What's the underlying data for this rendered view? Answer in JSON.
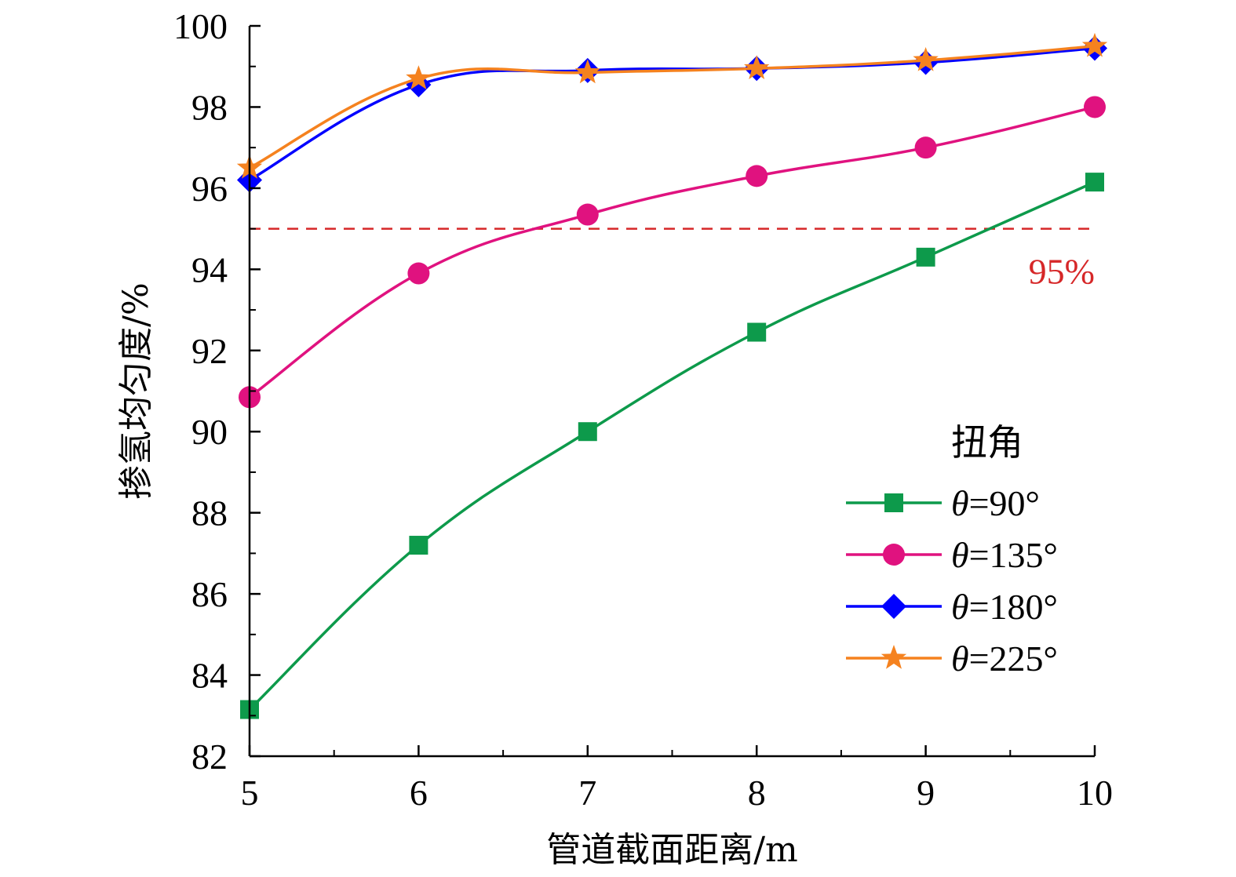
{
  "chart_data": {
    "type": "line",
    "xlabel": "管道截面距离/m",
    "ylabel": "掺氢均匀度/%",
    "x": [
      5,
      6,
      7,
      8,
      9,
      10
    ],
    "xlim": [
      5,
      10
    ],
    "ylim": [
      82,
      100
    ],
    "xticks": [
      "5",
      "6",
      "7",
      "8",
      "9",
      "10"
    ],
    "yticks": [
      "82",
      "84",
      "86",
      "88",
      "90",
      "92",
      "94",
      "96",
      "98",
      "100"
    ],
    "grid": false,
    "legend_title": "扭角",
    "legend_position": "bottom-right",
    "series": [
      {
        "name_prefix": "θ",
        "name_suffix": "=90°",
        "color": "#0d9a4b",
        "marker": "square",
        "values": [
          83.15,
          87.2,
          90.0,
          92.45,
          94.3,
          96.15
        ]
      },
      {
        "name_prefix": "θ",
        "name_suffix": "=135°",
        "color": "#e0127f",
        "marker": "circle",
        "values": [
          90.85,
          93.9,
          95.35,
          96.3,
          97.0,
          98.0
        ]
      },
      {
        "name_prefix": "θ",
        "name_suffix": "=180°",
        "color": "#0000ff",
        "marker": "diamond",
        "values": [
          96.2,
          98.55,
          98.9,
          98.95,
          99.1,
          99.45
        ]
      },
      {
        "name_prefix": "θ",
        "name_suffix": "=225°",
        "color": "#f5821f",
        "marker": "star",
        "values": [
          96.5,
          98.7,
          98.85,
          98.95,
          99.15,
          99.5
        ]
      }
    ],
    "reference_line": {
      "y": 95,
      "label": "95%",
      "color": "#d62728",
      "style": "dashed"
    }
  }
}
